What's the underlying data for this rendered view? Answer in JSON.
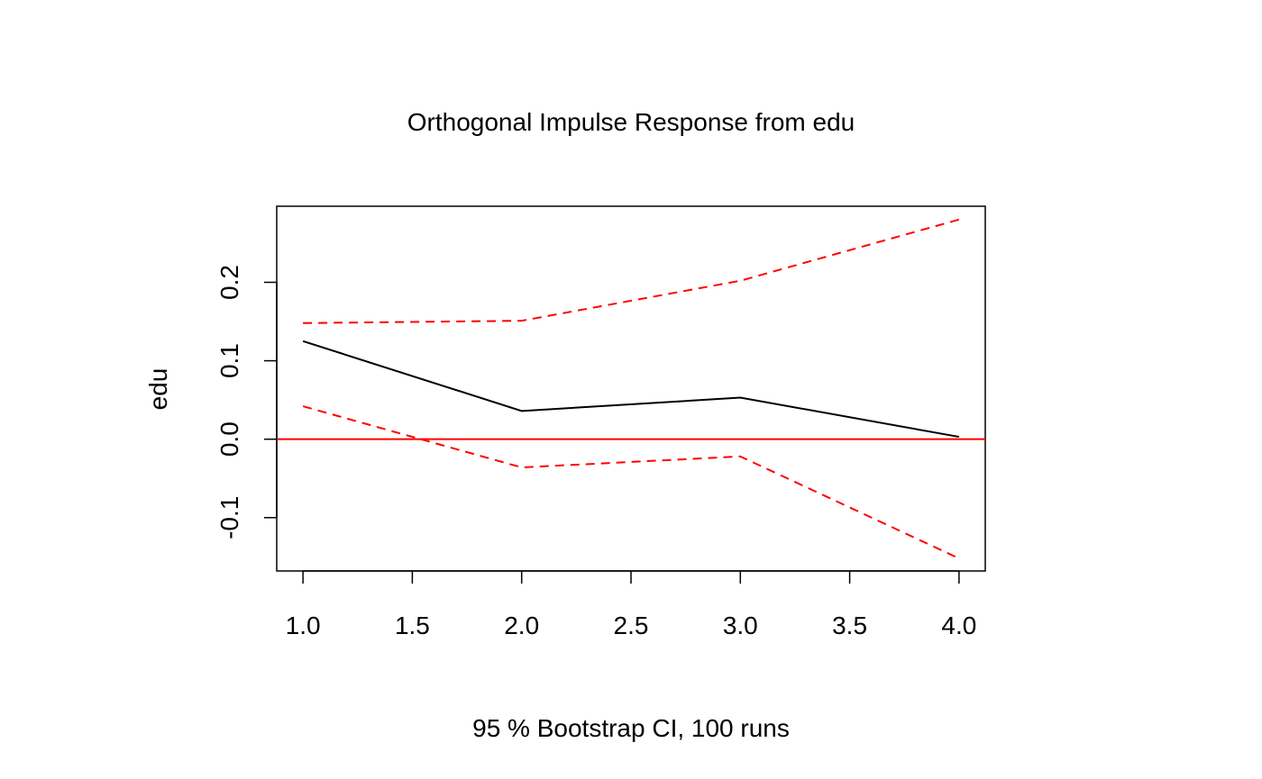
{
  "chart_data": {
    "type": "line",
    "title": "Orthogonal Impulse Response from edu",
    "xlabel": "95 % Bootstrap CI,  100 runs",
    "ylabel": "edu",
    "xlim": [
      0.88,
      4.12
    ],
    "ylim": [
      -0.168,
      0.297
    ],
    "x_ticks": [
      1.0,
      1.5,
      2.0,
      2.5,
      3.0,
      3.5,
      4.0
    ],
    "x_tick_labels": [
      "1.0",
      "1.5",
      "2.0",
      "2.5",
      "3.0",
      "3.5",
      "4.0"
    ],
    "y_ticks": [
      -0.1,
      0.0,
      0.1,
      0.2
    ],
    "y_tick_labels": [
      "-0.1",
      "0.0",
      "0.1",
      "0.2"
    ],
    "x": [
      1,
      2,
      3,
      4
    ],
    "series": [
      {
        "values": [
          0.125,
          0.036,
          0.053,
          0.003
        ],
        "color": "#000000",
        "style": "solid"
      },
      {
        "values": [
          0.148,
          0.151,
          0.202,
          0.28
        ],
        "color": "#ff0000",
        "style": "dashed"
      },
      {
        "values": [
          0.042,
          -0.036,
          -0.022,
          -0.152
        ],
        "color": "#ff0000",
        "style": "dashed"
      }
    ],
    "reference_line": {
      "y": 0.0,
      "color": "#ff0000"
    },
    "grid": false,
    "legend": "none"
  }
}
